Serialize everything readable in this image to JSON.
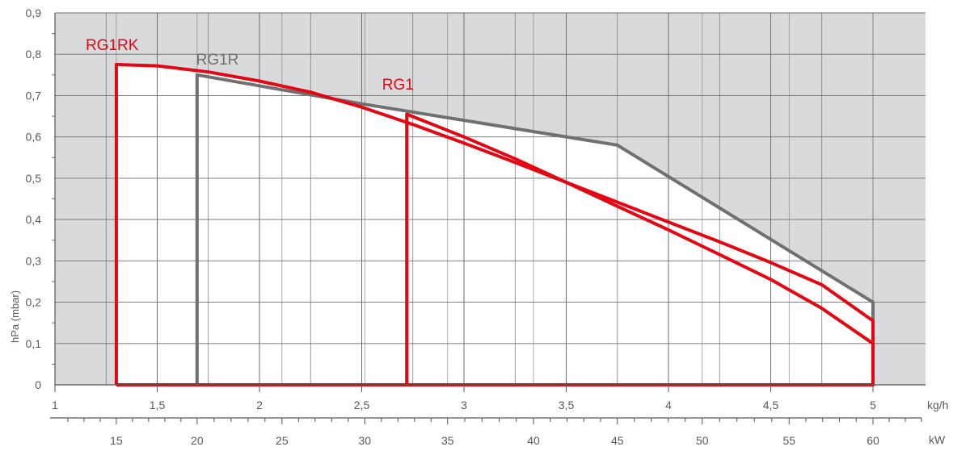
{
  "chart_data": {
    "type": "line",
    "ylabel": "hPa (mbar)",
    "xlabel": "kg/h",
    "x2label": "kW",
    "xlim": [
      1,
      5.25
    ],
    "ylim": [
      0,
      0.9
    ],
    "x_ticks": [
      1,
      1.5,
      2,
      2.5,
      3,
      3.5,
      4,
      4.5,
      5
    ],
    "x_tick_labels": [
      "1",
      "1,5",
      "2",
      "2,5",
      "3",
      "3,5",
      "4",
      "4,5",
      "5"
    ],
    "y_ticks": [
      0,
      0.1,
      0.2,
      0.3,
      0.4,
      0.5,
      0.6,
      0.7,
      0.8,
      0.9
    ],
    "y_tick_labels": [
      "0",
      "0,1",
      "0,2",
      "0,3",
      "0,4",
      "0,5",
      "0,6",
      "0,7",
      "0,8",
      "0,9"
    ],
    "x2_ticks": [
      15,
      20,
      25,
      30,
      35,
      40,
      45,
      50,
      55,
      60
    ],
    "x2_tick_labels": [
      "15",
      "20",
      "25",
      "30",
      "35",
      "40",
      "45",
      "50",
      "55",
      "60"
    ],
    "x2_ticks_in_x_units": [
      1.3,
      1.695,
      2.11,
      2.515,
      2.92,
      3.34,
      3.75,
      4.165,
      4.59,
      5.0
    ],
    "grid": true,
    "background_color": "#d9dadc",
    "series": [
      {
        "name": "RG1R",
        "color": "#707070",
        "points": [
          [
            1.695,
            0
          ],
          [
            1.695,
            0.75
          ],
          [
            2.5,
            0.68
          ],
          [
            3.75,
            0.58
          ],
          [
            5.0,
            0.2
          ],
          [
            5.0,
            0
          ],
          [
            1.695,
            0
          ]
        ]
      },
      {
        "name": "RG1RK",
        "color": "#e30613",
        "points": [
          [
            1.3,
            0
          ],
          [
            1.3,
            0.775
          ],
          [
            1.5,
            0.772
          ],
          [
            1.75,
            0.757
          ],
          [
            2.0,
            0.735
          ],
          [
            2.25,
            0.708
          ],
          [
            2.5,
            0.672
          ],
          [
            2.75,
            0.63
          ],
          [
            3.0,
            0.585
          ],
          [
            3.25,
            0.538
          ],
          [
            3.5,
            0.49
          ],
          [
            3.75,
            0.442
          ],
          [
            4.0,
            0.394
          ],
          [
            4.25,
            0.346
          ],
          [
            4.5,
            0.296
          ],
          [
            4.75,
            0.242
          ],
          [
            5.0,
            0.155
          ],
          [
            5.0,
            0
          ],
          [
            1.3,
            0
          ]
        ]
      },
      {
        "name": "RG1",
        "color": "#e30613",
        "points": [
          [
            2.72,
            0
          ],
          [
            2.72,
            0.655
          ],
          [
            3.0,
            0.6
          ],
          [
            3.25,
            0.547
          ],
          [
            3.5,
            0.49
          ],
          [
            3.75,
            0.432
          ],
          [
            4.0,
            0.375
          ],
          [
            4.25,
            0.315
          ],
          [
            4.5,
            0.255
          ],
          [
            4.75,
            0.185
          ],
          [
            5.0,
            0.1
          ],
          [
            5.0,
            0
          ],
          [
            2.72,
            0
          ]
        ]
      }
    ]
  }
}
